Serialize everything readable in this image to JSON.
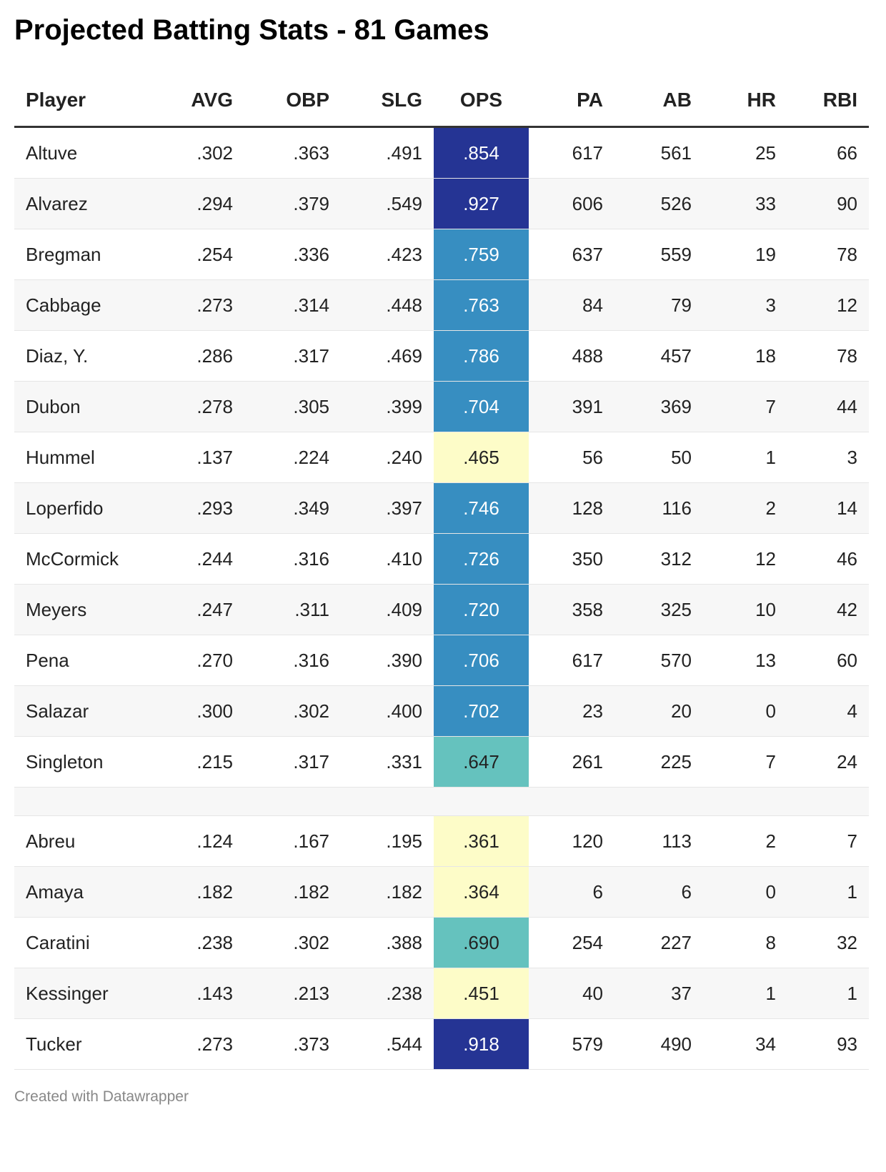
{
  "title": "Projected Batting Stats - 81 Games",
  "footer": "Created with Datawrapper",
  "colors": {
    "ops_dark": "#253494",
    "ops_mid": "#378ec1",
    "ops_teal": "#65c2be",
    "ops_light": "#fdfcc8",
    "row_alt": "#f7f7f7"
  },
  "table": {
    "headers": {
      "player": "Player",
      "avg": "AVG",
      "obp": "OBP",
      "slg": "SLG",
      "ops": "OPS",
      "pa": "PA",
      "ab": "AB",
      "hr": "HR",
      "rbi": "RBI"
    },
    "group1": [
      {
        "player": "Altuve",
        "avg": ".302",
        "obp": ".363",
        "slg": ".491",
        "ops": ".854",
        "pa": "617",
        "ab": "561",
        "hr": "25",
        "rbi": "66",
        "ops_color": "dark"
      },
      {
        "player": "Alvarez",
        "avg": ".294",
        "obp": ".379",
        "slg": ".549",
        "ops": ".927",
        "pa": "606",
        "ab": "526",
        "hr": "33",
        "rbi": "90",
        "ops_color": "dark"
      },
      {
        "player": "Bregman",
        "avg": ".254",
        "obp": ".336",
        "slg": ".423",
        "ops": ".759",
        "pa": "637",
        "ab": "559",
        "hr": "19",
        "rbi": "78",
        "ops_color": "mid"
      },
      {
        "player": "Cabbage",
        "avg": ".273",
        "obp": ".314",
        "slg": ".448",
        "ops": ".763",
        "pa": "84",
        "ab": "79",
        "hr": "3",
        "rbi": "12",
        "ops_color": "mid"
      },
      {
        "player": "Diaz, Y.",
        "avg": ".286",
        "obp": ".317",
        "slg": ".469",
        "ops": ".786",
        "pa": "488",
        "ab": "457",
        "hr": "18",
        "rbi": "78",
        "ops_color": "mid"
      },
      {
        "player": "Dubon",
        "avg": ".278",
        "obp": ".305",
        "slg": ".399",
        "ops": ".704",
        "pa": "391",
        "ab": "369",
        "hr": "7",
        "rbi": "44",
        "ops_color": "mid"
      },
      {
        "player": "Hummel",
        "avg": ".137",
        "obp": ".224",
        "slg": ".240",
        "ops": ".465",
        "pa": "56",
        "ab": "50",
        "hr": "1",
        "rbi": "3",
        "ops_color": "light"
      },
      {
        "player": "Loperfido",
        "avg": ".293",
        "obp": ".349",
        "slg": ".397",
        "ops": ".746",
        "pa": "128",
        "ab": "116",
        "hr": "2",
        "rbi": "14",
        "ops_color": "mid"
      },
      {
        "player": "McCormick",
        "avg": ".244",
        "obp": ".316",
        "slg": ".410",
        "ops": ".726",
        "pa": "350",
        "ab": "312",
        "hr": "12",
        "rbi": "46",
        "ops_color": "mid"
      },
      {
        "player": "Meyers",
        "avg": ".247",
        "obp": ".311",
        "slg": ".409",
        "ops": ".720",
        "pa": "358",
        "ab": "325",
        "hr": "10",
        "rbi": "42",
        "ops_color": "mid"
      },
      {
        "player": "Pena",
        "avg": ".270",
        "obp": ".316",
        "slg": ".390",
        "ops": ".706",
        "pa": "617",
        "ab": "570",
        "hr": "13",
        "rbi": "60",
        "ops_color": "mid"
      },
      {
        "player": "Salazar",
        "avg": ".300",
        "obp": ".302",
        "slg": ".400",
        "ops": ".702",
        "pa": "23",
        "ab": "20",
        "hr": "0",
        "rbi": "4",
        "ops_color": "mid"
      },
      {
        "player": "Singleton",
        "avg": ".215",
        "obp": ".317",
        "slg": ".331",
        "ops": ".647",
        "pa": "261",
        "ab": "225",
        "hr": "7",
        "rbi": "24",
        "ops_color": "teal"
      }
    ],
    "group2": [
      {
        "player": "Abreu",
        "avg": ".124",
        "obp": ".167",
        "slg": ".195",
        "ops": ".361",
        "pa": "120",
        "ab": "113",
        "hr": "2",
        "rbi": "7",
        "ops_color": "light"
      },
      {
        "player": "Amaya",
        "avg": ".182",
        "obp": ".182",
        "slg": ".182",
        "ops": ".364",
        "pa": "6",
        "ab": "6",
        "hr": "0",
        "rbi": "1",
        "ops_color": "light"
      },
      {
        "player": "Caratini",
        "avg": ".238",
        "obp": ".302",
        "slg": ".388",
        "ops": ".690",
        "pa": "254",
        "ab": "227",
        "hr": "8",
        "rbi": "32",
        "ops_color": "teal"
      },
      {
        "player": "Kessinger",
        "avg": ".143",
        "obp": ".213",
        "slg": ".238",
        "ops": ".451",
        "pa": "40",
        "ab": "37",
        "hr": "1",
        "rbi": "1",
        "ops_color": "light"
      },
      {
        "player": "Tucker",
        "avg": ".273",
        "obp": ".373",
        "slg": ".544",
        "ops": ".918",
        "pa": "579",
        "ab": "490",
        "hr": "34",
        "rbi": "93",
        "ops_color": "dark"
      }
    ]
  }
}
